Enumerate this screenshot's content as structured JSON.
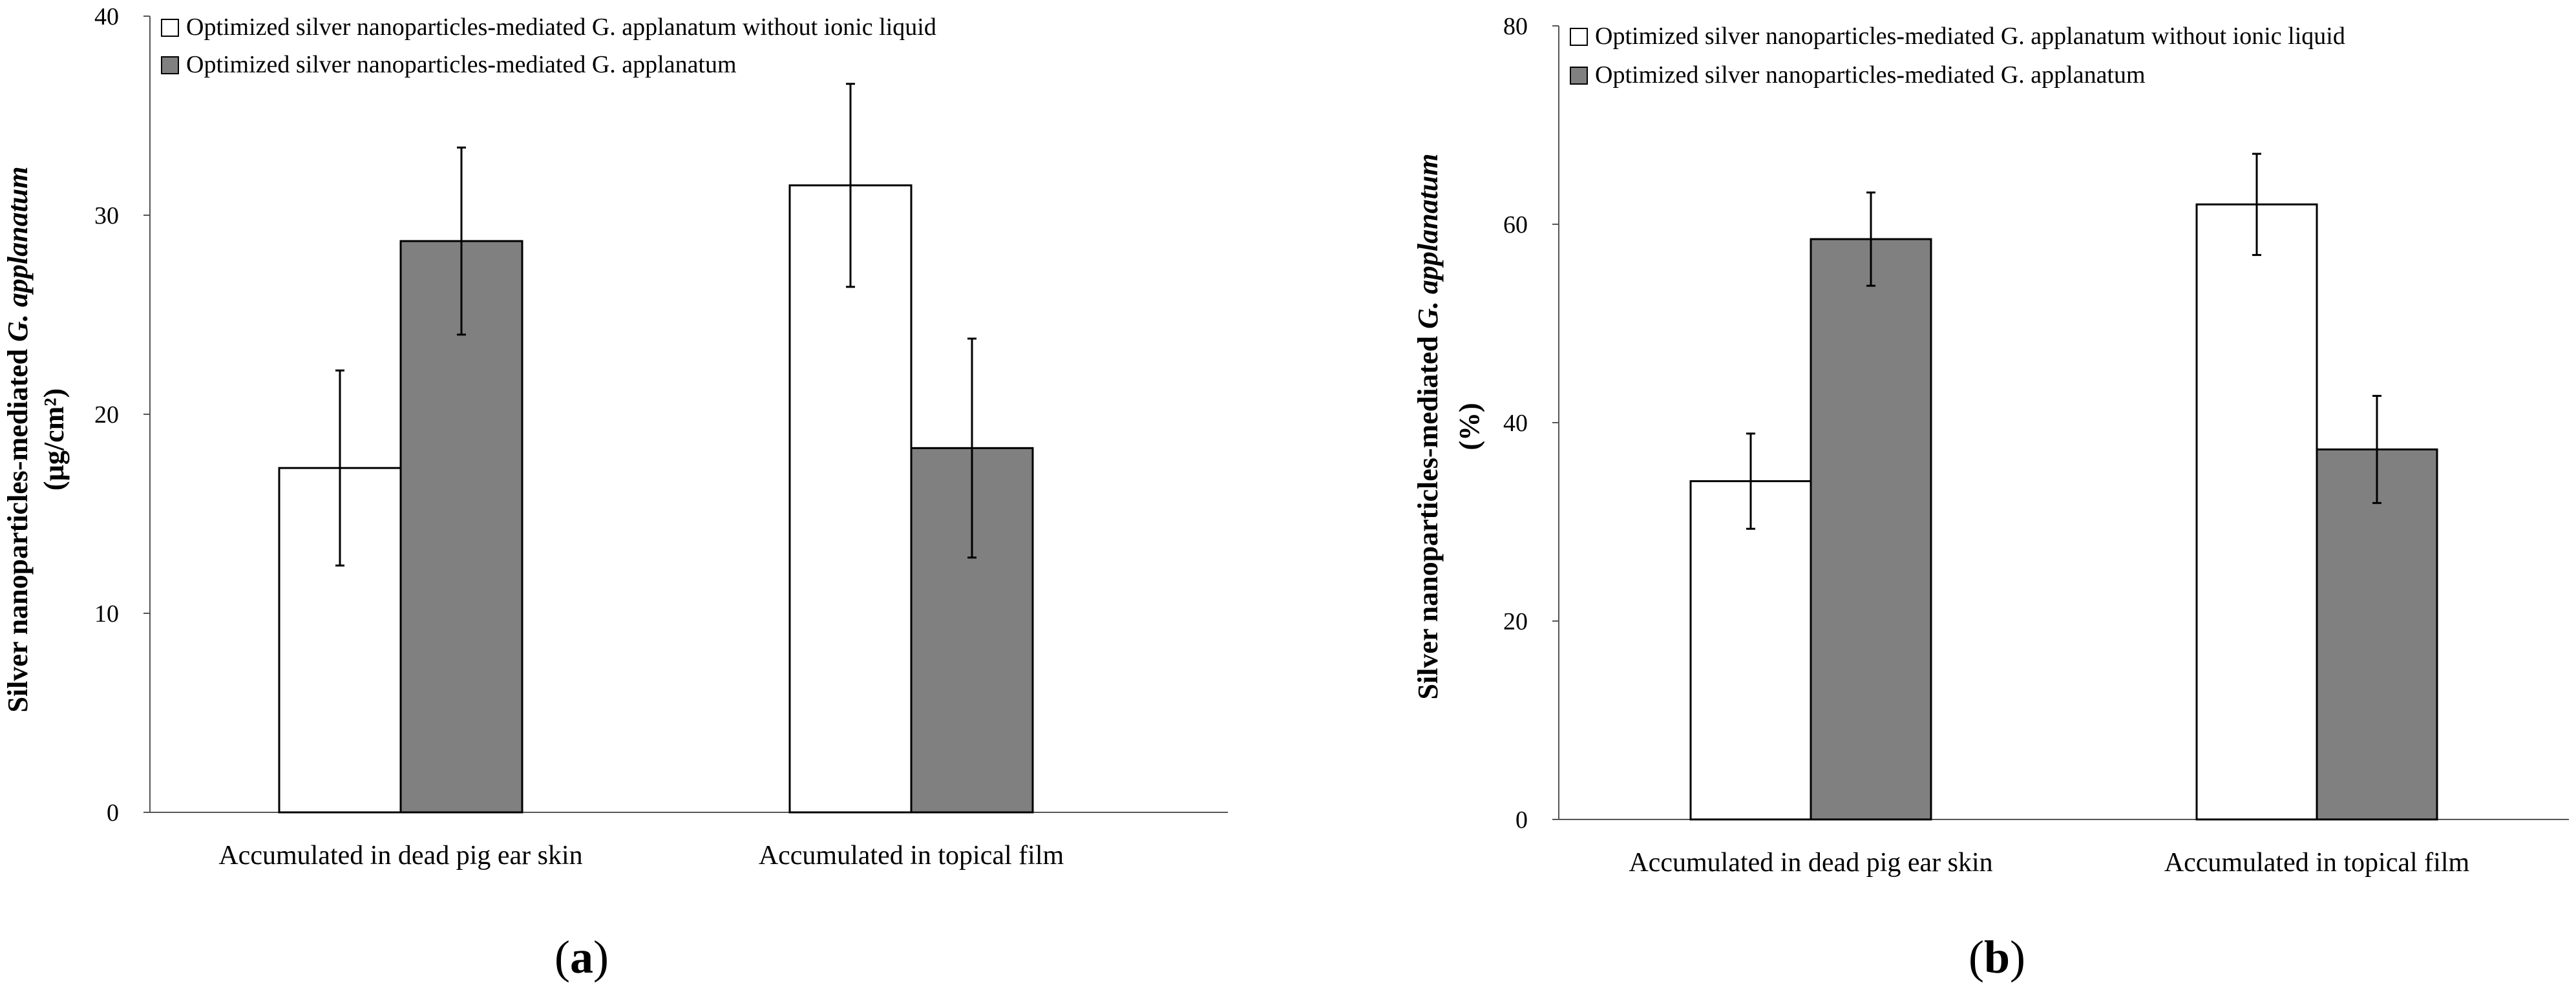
{
  "chart_data": [
    {
      "type": "bar",
      "panel_label": "(a)",
      "panel_letter": "a",
      "categories": [
        "Accumulated in dead pig ear skin",
        "Accumulated in topical film"
      ],
      "series": [
        {
          "name": "Optimized silver nanoparticles-mediated G. applanatum without ionic liquid",
          "color": "#ffffff",
          "values": [
            17.3,
            31.5
          ],
          "errors": [
            4.9,
            5.1
          ]
        },
        {
          "name": "Optimized silver nanoparticles-mediated G. applanatum",
          "color": "#808080",
          "values": [
            28.7,
            18.3
          ],
          "errors": [
            4.7,
            5.5
          ]
        }
      ],
      "ylabel_main": "Silver nanoparticles-mediated ",
      "ylabel_italic": "G. applanatum",
      "ylabel_unit": "(µg/cm²)",
      "ylim": [
        0,
        40
      ],
      "yticks": [
        0,
        10,
        20,
        30,
        40
      ],
      "xlabel": "",
      "legend_position": "top-left",
      "grid": false
    },
    {
      "type": "bar",
      "panel_label": "(b)",
      "panel_letter": "b",
      "categories": [
        "Accumulated in dead pig ear skin",
        "Accumulated in topical film"
      ],
      "series": [
        {
          "name": "Optimized silver nanoparticles-mediated G. applanatum without ionic liquid",
          "color": "#ffffff",
          "values": [
            34.1,
            62.0
          ],
          "errors": [
            4.8,
            5.1
          ]
        },
        {
          "name": "Optimized silver nanoparticles-mediated G. applanatum",
          "color": "#808080",
          "values": [
            58.5,
            37.3
          ],
          "errors": [
            4.7,
            5.4
          ]
        }
      ],
      "ylabel_main": "Silver nanoparticles-mediated ",
      "ylabel_italic": "G. applanatum",
      "ylabel_unit": "(%)",
      "ylim": [
        0,
        80
      ],
      "yticks": [
        0,
        20,
        40,
        60,
        80
      ],
      "xlabel": "",
      "legend_position": "top-left",
      "grid": false
    }
  ]
}
